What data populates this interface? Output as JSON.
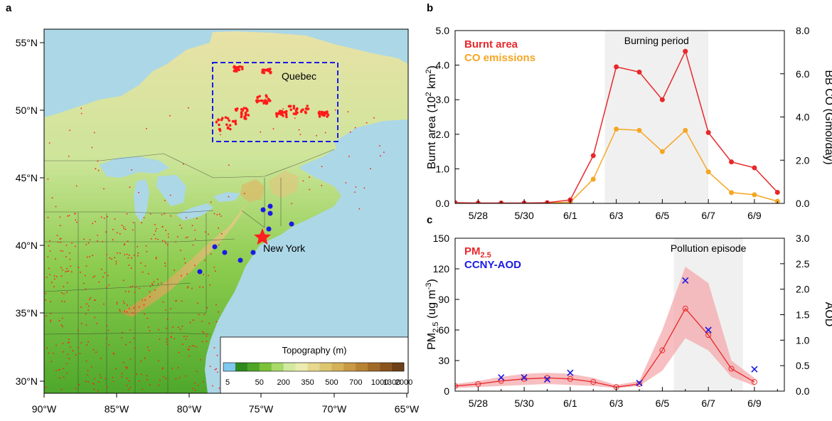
{
  "panels": {
    "a": "a",
    "b": "b",
    "c": "c"
  },
  "map": {
    "lat_ticks": [
      "55°N",
      "50°N",
      "45°N",
      "40°N",
      "35°N",
      "30°N"
    ],
    "lon_ticks": [
      "90°W",
      "85°W",
      "80°W",
      "75°W",
      "70°W",
      "65°W"
    ],
    "region_label": "Quebec",
    "city_label": "New York",
    "colorbar_title": "Topography (m)",
    "colorbar_ticks": [
      "5",
      "50",
      "200",
      "350",
      "500",
      "700",
      "1000",
      "1300",
      "2000"
    ],
    "colorbar_colors": [
      "#7fc8f0",
      "#2f8a1e",
      "#4fa526",
      "#7cc23a",
      "#a8d96a",
      "#d2e9a0",
      "#ecebb0",
      "#e6d88e",
      "#ddc670",
      "#d3b25a",
      "#c99a44",
      "#b88235",
      "#a26a28",
      "#8a541f",
      "#6e4018"
    ],
    "colors": {
      "water": "#acd7e6",
      "fire_points": "#ff1a1a",
      "sites": "#1a1ae6",
      "city_star": "#ff2020",
      "box": "#1a1ae6"
    }
  },
  "chart_b": {
    "type": "line",
    "x_labels": [
      "5/28",
      "5/30",
      "6/1",
      "6/3",
      "6/5",
      "6/7",
      "6/9"
    ],
    "x_days": [
      28,
      30,
      32,
      34,
      36,
      38,
      40
    ],
    "left_axis": {
      "title_main": "Burnt area (10",
      "title_sup": "2",
      "title_mid": " km",
      "title_sup2": "2",
      "title_end": ")",
      "ticks": [
        "0.0",
        "1.0",
        "2.0",
        "3.0",
        "4.0",
        "5.0"
      ],
      "range": [
        0,
        5
      ]
    },
    "right_axis": {
      "title": "BB CO (Gmol/day)",
      "ticks": [
        "0.0",
        "2.0",
        "4.0",
        "6.0",
        "8.0"
      ],
      "range": [
        0,
        8
      ]
    },
    "legend": [
      {
        "name": "Burnt area",
        "color": "#e8282b"
      },
      {
        "name": "CO emissions",
        "color": "#f5a623"
      }
    ],
    "shaded_label": "Burning period",
    "shaded_range": [
      33.5,
      38.0
    ],
    "series": [
      {
        "name": "Burnt area",
        "color": "#e8282b",
        "axis": "left",
        "x": [
          27,
          28,
          29,
          30,
          31,
          32,
          33,
          34,
          35,
          36,
          37,
          38,
          39,
          40,
          41
        ],
        "y": [
          0.02,
          0.01,
          0.01,
          0.01,
          0.02,
          0.1,
          1.38,
          3.95,
          3.8,
          3.0,
          4.4,
          2.05,
          1.2,
          1.03,
          0.32
        ]
      },
      {
        "name": "CO emissions",
        "color": "#f5a623",
        "axis": "right",
        "x": [
          27,
          28,
          29,
          30,
          31,
          32,
          33,
          34,
          35,
          36,
          37,
          38,
          39,
          40,
          41
        ],
        "y": [
          0.0,
          0.0,
          0.0,
          0.0,
          0.02,
          0.06,
          1.12,
          3.44,
          3.38,
          2.4,
          3.38,
          1.46,
          0.5,
          0.4,
          0.1
        ]
      }
    ]
  },
  "chart_c": {
    "type": "line",
    "x_labels": [
      "5/28",
      "5/30",
      "6/1",
      "6/3",
      "6/5",
      "6/7",
      "6/9"
    ],
    "x_days": [
      28,
      30,
      32,
      34,
      36,
      38,
      40
    ],
    "left_axis": {
      "title_main": "PM",
      "title_sub": "2.5",
      "title_mid": " (ug m",
      "title_sup": "-3",
      "title_end": ")",
      "ticks": [
        "0",
        "30",
        "60",
        "90",
        "120",
        "150"
      ],
      "range": [
        0,
        150
      ]
    },
    "right_axis": {
      "title": "AOD",
      "ticks": [
        "0.0",
        "0.5",
        "1.0",
        "1.5",
        "2.0",
        "2.5",
        "3.0"
      ],
      "range": [
        0,
        3
      ]
    },
    "legend": [
      {
        "name_main": "PM",
        "name_sub": "2.5",
        "color": "#e8282b"
      },
      {
        "name": "CCNY-AOD",
        "color": "#1a1ae6"
      }
    ],
    "shaded_label": "Pollution episode",
    "shaded_range": [
      36.5,
      39.5
    ],
    "series": [
      {
        "name": "PM2.5",
        "color": "#e8282b",
        "axis": "left",
        "x": [
          27,
          28,
          29,
          30,
          31,
          32,
          33,
          34,
          35,
          36,
          37,
          38,
          39,
          40,
          41
        ],
        "y": [
          5,
          7,
          10,
          12,
          13,
          12,
          9,
          4,
          7,
          40,
          81,
          55,
          22,
          9,
          null
        ],
        "lower": [
          3,
          4,
          5,
          6,
          7,
          6,
          5,
          3,
          5,
          20,
          52,
          40,
          14,
          5,
          null
        ],
        "upper": [
          7,
          10,
          14,
          17,
          18,
          17,
          13,
          6,
          10,
          60,
          122,
          106,
          30,
          13,
          null
        ]
      },
      {
        "name": "CCNY-AOD",
        "color": "#1a1ae6",
        "axis": "right",
        "x": [
          29,
          30,
          31,
          32,
          35,
          37,
          38,
          40
        ],
        "y": [
          0.27,
          0.27,
          0.23,
          0.36,
          0.16,
          2.17,
          1.2,
          0.43
        ]
      }
    ]
  }
}
